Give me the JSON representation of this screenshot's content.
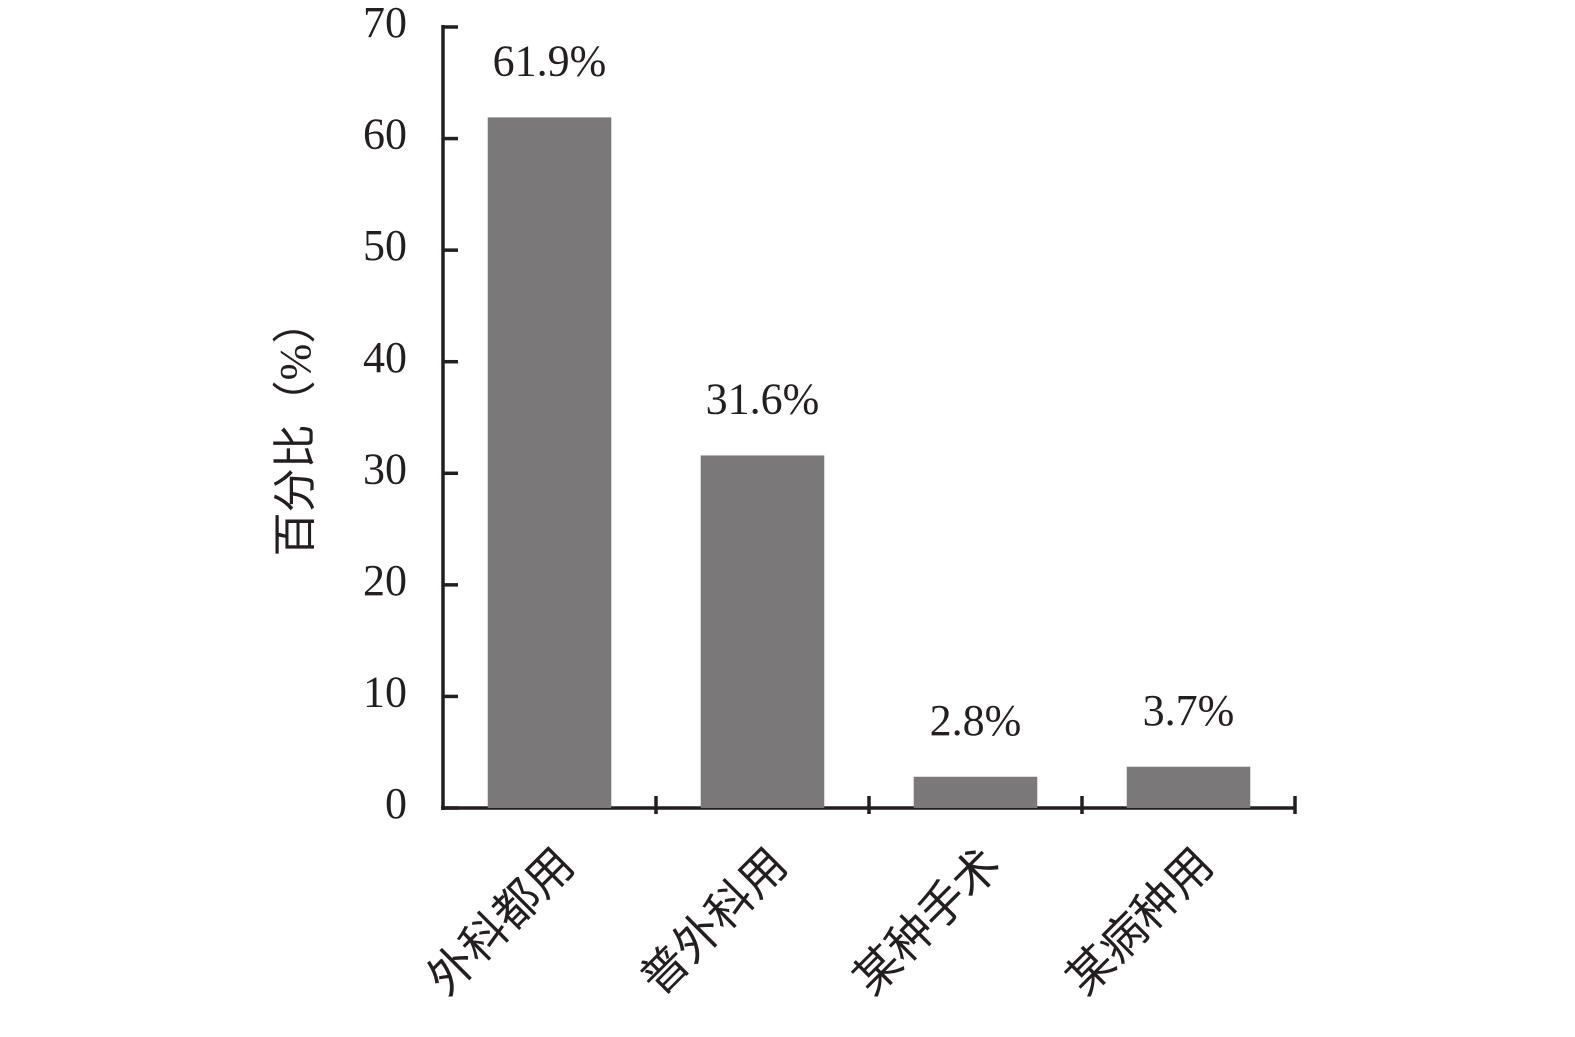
{
  "chart_data": {
    "type": "bar",
    "y_label": "百分比（%）",
    "categories": [
      "外科都用",
      "普外科用",
      "某种手术",
      "某病种用"
    ],
    "values": [
      61.9,
      31.6,
      2.8,
      3.7
    ],
    "value_labels": [
      "61.9%",
      "31.6%",
      "2.8%",
      "3.7%"
    ],
    "color": "#7a7879",
    "ylim": [
      0,
      70
    ],
    "yticks": [
      0,
      10,
      20,
      30,
      40,
      50,
      60,
      70
    ],
    "grid": false
  }
}
